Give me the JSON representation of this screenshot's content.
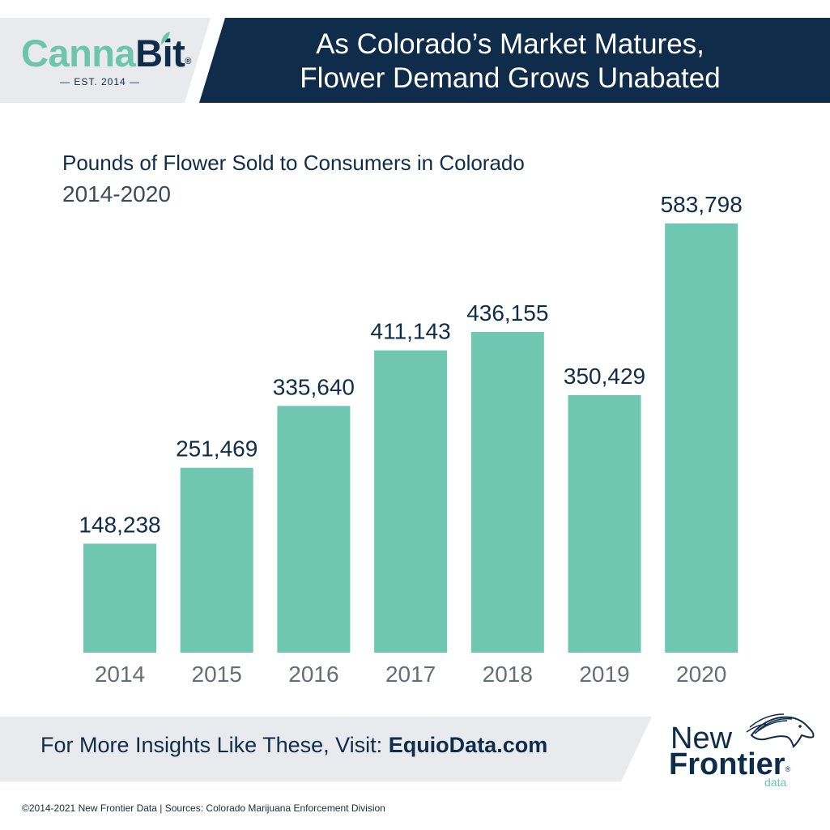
{
  "brand": {
    "name_part1": "Canna",
    "name_part2": "Bit",
    "reg_mark": "®",
    "established": "— EST. 2014 —"
  },
  "headline": {
    "line1": "As Colorado’s Market Matures,",
    "line2": "Flower Demand Grows Unabated"
  },
  "colors": {
    "navy": "#0f2d4b",
    "teal_bar": "#70c7b1",
    "brand_green": "#6cc5ac",
    "light_gray": "#e8eaed"
  },
  "chart_data": {
    "type": "bar",
    "title": "Pounds of Flower Sold to Consumers in Colorado",
    "subtitle": "2014-2020",
    "categories": [
      "2014",
      "2015",
      "2016",
      "2017",
      "2018",
      "2019",
      "2020"
    ],
    "values": [
      148238,
      251469,
      335640,
      411143,
      436155,
      350429,
      583798
    ],
    "value_labels": [
      "148,238",
      "251,469",
      "335,640",
      "411,143",
      "436,155",
      "350,429",
      "583,798"
    ],
    "xlabel": "",
    "ylabel": "",
    "ylim": [
      0,
      583798
    ],
    "grid": false,
    "legend": "none",
    "data_labels": "above-bars"
  },
  "footer": {
    "prompt": "For More Insights Like These, Visit: ",
    "link": "EquioData.com"
  },
  "partner_logo": {
    "line1": "New",
    "line2": "Frontier",
    "reg_mark": "®",
    "line3": "data",
    "icon": "horse-head-icon"
  },
  "copyright": "©2014-2021  New Frontier Data | Sources: Colorado Marijuana Enforcement Division"
}
